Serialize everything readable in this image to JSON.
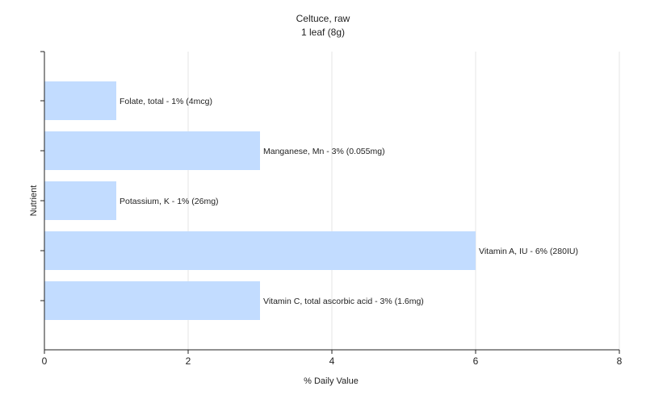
{
  "chart_data": {
    "type": "bar",
    "orientation": "horizontal",
    "title": "Celtuce, raw",
    "subtitle": "1 leaf (8g)",
    "xlabel": "% Daily Value",
    "ylabel": "Nutrient",
    "xlim": [
      0,
      8
    ],
    "x_ticks": [
      0,
      2,
      4,
      6,
      8
    ],
    "grid": "vertical",
    "bar_color": "#c2dcff",
    "categories": [
      "Folate, total - 1% (4mcg)",
      "Manganese, Mn - 3% (0.055mg)",
      "Potassium, K - 1% (26mg)",
      "Vitamin A, IU - 6% (280IU)",
      "Vitamin C, total ascorbic acid - 3% (1.6mg)"
    ],
    "values": [
      1,
      3,
      1,
      6,
      3
    ]
  }
}
